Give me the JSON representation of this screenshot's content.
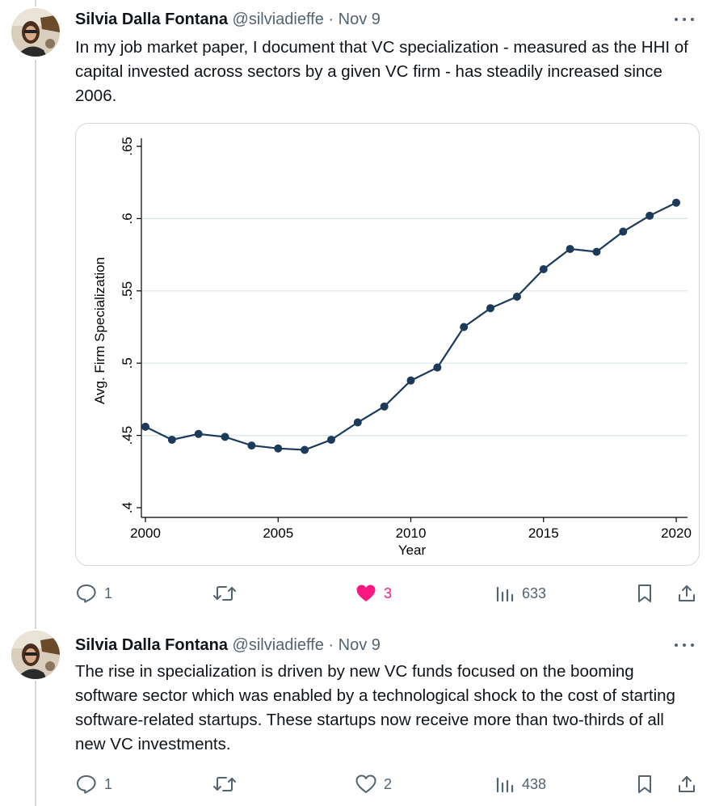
{
  "tweets": [
    {
      "author_name": "Silvia Dalla Fontana",
      "handle": "@silviadieffe",
      "separator": "·",
      "date": "Nov 9",
      "text": "In my job market paper, I document that VC specialization - measured as the HHI of capital invested across sectors by a given VC firm - has steadily increased since 2006.",
      "replies": "1",
      "likes": "3",
      "liked": true,
      "views": "633"
    },
    {
      "author_name": "Silvia Dalla Fontana",
      "handle": "@silviadieffe",
      "separator": "·",
      "date": "Nov 9",
      "text": "The rise in specialization is driven by new VC funds focused on the booming software sector which was enabled by a technological shock to the cost of starting software-related startups. These startups now receive more than two-thirds of all new VC investments.",
      "replies": "1",
      "likes": "2",
      "liked": false,
      "views": "438"
    }
  ],
  "colors": {
    "text": "#0f1419",
    "secondary": "#536471",
    "like": "#f91880",
    "series": "#1c3a5a",
    "border": "#cfd9de"
  },
  "icons": [
    "reply-icon",
    "retweet-icon",
    "heart-icon",
    "views-icon",
    "bookmark-icon",
    "share-icon",
    "more-icon"
  ],
  "chart_data": {
    "type": "line",
    "xlabel": "Year",
    "ylabel": "Avg. Firm Specialization",
    "xlim": [
      2000,
      2020
    ],
    "ylim": [
      0.4,
      0.65
    ],
    "x_ticks": [
      2000,
      2005,
      2010,
      2015,
      2020
    ],
    "y_ticks": [
      0.4,
      0.45,
      0.5,
      0.55,
      0.6,
      0.65
    ],
    "y_tick_labels": [
      ".4",
      ".45",
      ".5",
      ".55",
      ".6",
      ".65"
    ],
    "grid": true,
    "x": [
      2000,
      2001,
      2002,
      2003,
      2004,
      2005,
      2006,
      2007,
      2008,
      2009,
      2010,
      2011,
      2012,
      2013,
      2014,
      2015,
      2016,
      2017,
      2018,
      2019,
      2020
    ],
    "y": [
      0.456,
      0.447,
      0.451,
      0.449,
      0.443,
      0.441,
      0.44,
      0.447,
      0.459,
      0.47,
      0.488,
      0.497,
      0.525,
      0.538,
      0.546,
      0.565,
      0.579,
      0.577,
      0.591,
      0.602,
      0.611
    ]
  }
}
